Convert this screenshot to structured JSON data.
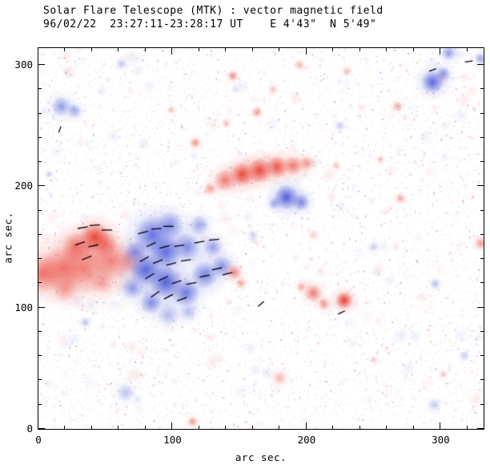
{
  "chart": {
    "title": "Solar Flare Telescope (MTK) : vector magnetic field",
    "subtitle": "96/02/22  23:27:11-23:28:17 UT    E 4'43\"  N 5'49\"",
    "xlabel": "arc sec.",
    "ylabel": "arc sec."
  },
  "chart_data": {
    "type": "heatmap",
    "description": "Vector magnetogram: red = positive line-of-sight polarity, blue = negative polarity, black segments = transverse field vectors",
    "xlim": [
      0,
      332
    ],
    "ylim": [
      0,
      314
    ],
    "xticks": [
      0,
      100,
      200,
      300
    ],
    "yticks": [
      0,
      100,
      200,
      300
    ],
    "minor_tick_step": 20,
    "colors": {
      "positive": "#e83c30",
      "negative": "#4656d8"
    },
    "noise": {
      "count": 14000,
      "max_alpha": 0.45,
      "smudges": 220,
      "seed": 7
    },
    "blobs": [
      {
        "x": 3,
        "y": 128,
        "r": 16,
        "i": 0.6,
        "p": "pos"
      },
      {
        "x": 18,
        "y": 132,
        "r": 18,
        "i": 0.55,
        "p": "pos"
      },
      {
        "x": 35,
        "y": 133,
        "r": 22,
        "i": 0.5,
        "p": "pos"
      },
      {
        "x": 55,
        "y": 138,
        "r": 16,
        "i": 0.5,
        "p": "pos"
      },
      {
        "x": 68,
        "y": 138,
        "r": 10,
        "i": 0.35,
        "p": "pos"
      },
      {
        "x": 42,
        "y": 158,
        "r": 12,
        "i": 0.9,
        "p": "pos"
      },
      {
        "x": 28,
        "y": 150,
        "r": 12,
        "i": 0.6,
        "p": "pos"
      },
      {
        "x": 50,
        "y": 152,
        "r": 10,
        "i": 0.55,
        "p": "pos"
      },
      {
        "x": 20,
        "y": 115,
        "r": 10,
        "i": 0.35,
        "p": "pos"
      },
      {
        "x": 48,
        "y": 120,
        "r": 9,
        "i": 0.3,
        "p": "pos"
      },
      {
        "x": 85,
        "y": 160,
        "r": 15,
        "i": 0.75,
        "p": "neg"
      },
      {
        "x": 98,
        "y": 168,
        "r": 11,
        "i": 0.55,
        "p": "neg"
      },
      {
        "x": 95,
        "y": 146,
        "r": 13,
        "i": 0.8,
        "p": "neg"
      },
      {
        "x": 111,
        "y": 150,
        "r": 11,
        "i": 0.6,
        "p": "neg"
      },
      {
        "x": 80,
        "y": 131,
        "r": 13,
        "i": 0.85,
        "p": "neg"
      },
      {
        "x": 95,
        "y": 121,
        "r": 13,
        "i": 0.9,
        "p": "neg"
      },
      {
        "x": 110,
        "y": 112,
        "r": 11,
        "i": 0.7,
        "p": "neg"
      },
      {
        "x": 124,
        "y": 127,
        "r": 11,
        "i": 0.65,
        "p": "neg"
      },
      {
        "x": 137,
        "y": 134,
        "r": 9,
        "i": 0.55,
        "p": "neg"
      },
      {
        "x": 70,
        "y": 116,
        "r": 9,
        "i": 0.5,
        "p": "neg"
      },
      {
        "x": 84,
        "y": 104,
        "r": 9,
        "i": 0.6,
        "p": "neg"
      },
      {
        "x": 120,
        "y": 168,
        "r": 8,
        "i": 0.45,
        "p": "neg"
      },
      {
        "x": 130,
        "y": 150,
        "r": 8,
        "i": 0.5,
        "p": "neg"
      },
      {
        "x": 72,
        "y": 146,
        "r": 9,
        "i": 0.55,
        "p": "neg"
      },
      {
        "x": 97,
        "y": 94,
        "r": 9,
        "i": 0.35,
        "p": "neg"
      },
      {
        "x": 112,
        "y": 96,
        "r": 7,
        "i": 0.3,
        "p": "neg"
      },
      {
        "x": 146,
        "y": 129,
        "r": 6,
        "i": 0.5,
        "p": "pos"
      },
      {
        "x": 151,
        "y": 120,
        "r": 4,
        "i": 0.4,
        "p": "pos"
      },
      {
        "x": 139,
        "y": 205,
        "r": 9,
        "i": 0.6,
        "p": "pos"
      },
      {
        "x": 152,
        "y": 210,
        "r": 10,
        "i": 0.85,
        "p": "pos"
      },
      {
        "x": 165,
        "y": 213,
        "r": 10,
        "i": 0.9,
        "p": "pos"
      },
      {
        "x": 178,
        "y": 216,
        "r": 9,
        "i": 0.8,
        "p": "pos"
      },
      {
        "x": 190,
        "y": 217,
        "r": 8,
        "i": 0.6,
        "p": "pos"
      },
      {
        "x": 200,
        "y": 219,
        "r": 6,
        "i": 0.45,
        "p": "pos"
      },
      {
        "x": 128,
        "y": 198,
        "r": 5,
        "i": 0.4,
        "p": "pos"
      },
      {
        "x": 185,
        "y": 191,
        "r": 10,
        "i": 0.9,
        "p": "neg"
      },
      {
        "x": 196,
        "y": 187,
        "r": 7,
        "i": 0.6,
        "p": "neg"
      },
      {
        "x": 176,
        "y": 186,
        "r": 5,
        "i": 0.4,
        "p": "neg"
      },
      {
        "x": 205,
        "y": 112,
        "r": 7,
        "i": 0.6,
        "p": "pos"
      },
      {
        "x": 213,
        "y": 103,
        "r": 5,
        "i": 0.45,
        "p": "pos"
      },
      {
        "x": 228,
        "y": 106,
        "r": 7,
        "i": 0.95,
        "p": "pos"
      },
      {
        "x": 196,
        "y": 117,
        "r": 4,
        "i": 0.35,
        "p": "pos"
      },
      {
        "x": 294,
        "y": 286,
        "r": 9,
        "i": 0.85,
        "p": "neg"
      },
      {
        "x": 302,
        "y": 293,
        "r": 6,
        "i": 0.5,
        "p": "neg"
      },
      {
        "x": 306,
        "y": 310,
        "r": 6,
        "i": 0.5,
        "p": "neg"
      },
      {
        "x": 330,
        "y": 305,
        "r": 5,
        "i": 0.4,
        "p": "neg"
      },
      {
        "x": 17,
        "y": 266,
        "r": 8,
        "i": 0.5,
        "p": "neg"
      },
      {
        "x": 27,
        "y": 262,
        "r": 6,
        "i": 0.4,
        "p": "neg"
      },
      {
        "x": 117,
        "y": 236,
        "r": 4,
        "i": 0.5,
        "p": "pos"
      },
      {
        "x": 145,
        "y": 291,
        "r": 4,
        "i": 0.5,
        "p": "pos"
      },
      {
        "x": 163,
        "y": 261,
        "r": 4,
        "i": 0.45,
        "p": "pos"
      },
      {
        "x": 99,
        "y": 263,
        "r": 3,
        "i": 0.3,
        "p": "pos"
      },
      {
        "x": 140,
        "y": 252,
        "r": 3,
        "i": 0.3,
        "p": "pos"
      },
      {
        "x": 270,
        "y": 190,
        "r": 4,
        "i": 0.4,
        "p": "pos"
      },
      {
        "x": 330,
        "y": 153,
        "r": 5,
        "i": 0.45,
        "p": "pos"
      },
      {
        "x": 255,
        "y": 222,
        "r": 3,
        "i": 0.3,
        "p": "pos"
      },
      {
        "x": 268,
        "y": 266,
        "r": 4,
        "i": 0.4,
        "p": "pos"
      },
      {
        "x": 222,
        "y": 217,
        "r": 3,
        "i": 0.3,
        "p": "pos"
      },
      {
        "x": 180,
        "y": 42,
        "r": 6,
        "i": 0.3,
        "p": "pos"
      },
      {
        "x": 115,
        "y": 6,
        "r": 4,
        "i": 0.45,
        "p": "pos"
      },
      {
        "x": 250,
        "y": 57,
        "r": 3,
        "i": 0.25,
        "p": "pos"
      },
      {
        "x": 302,
        "y": 45,
        "r": 3,
        "i": 0.25,
        "p": "pos"
      },
      {
        "x": 230,
        "y": 295,
        "r": 4,
        "i": 0.25,
        "p": "pos"
      },
      {
        "x": 195,
        "y": 300,
        "r": 4,
        "i": 0.3,
        "p": "pos"
      },
      {
        "x": 175,
        "y": 280,
        "r": 4,
        "i": 0.25,
        "p": "pos"
      },
      {
        "x": 205,
        "y": 160,
        "r": 4,
        "i": 0.2,
        "p": "pos"
      },
      {
        "x": 65,
        "y": 30,
        "r": 7,
        "i": 0.3,
        "p": "neg"
      },
      {
        "x": 35,
        "y": 88,
        "r": 4,
        "i": 0.3,
        "p": "neg"
      },
      {
        "x": 8,
        "y": 210,
        "r": 3,
        "i": 0.25,
        "p": "neg"
      },
      {
        "x": 62,
        "y": 301,
        "r": 4,
        "i": 0.3,
        "p": "neg"
      },
      {
        "x": 250,
        "y": 150,
        "r": 4,
        "i": 0.25,
        "p": "neg"
      },
      {
        "x": 296,
        "y": 120,
        "r": 4,
        "i": 0.25,
        "p": "neg"
      },
      {
        "x": 318,
        "y": 60,
        "r": 4,
        "i": 0.22,
        "p": "neg"
      },
      {
        "x": 225,
        "y": 250,
        "r": 4,
        "i": 0.25,
        "p": "neg"
      },
      {
        "x": 160,
        "y": 160,
        "r": 4,
        "i": 0.2,
        "p": "neg"
      },
      {
        "x": 295,
        "y": 20,
        "r": 5,
        "i": 0.25,
        "p": "neg"
      }
    ],
    "vectors": [
      {
        "x": 78,
        "y": 162,
        "a": 15
      },
      {
        "x": 88,
        "y": 165,
        "a": 5
      },
      {
        "x": 97,
        "y": 167,
        "a": 0
      },
      {
        "x": 84,
        "y": 152,
        "a": 25
      },
      {
        "x": 94,
        "y": 150,
        "a": 15
      },
      {
        "x": 105,
        "y": 151,
        "a": 8
      },
      {
        "x": 79,
        "y": 140,
        "a": 30
      },
      {
        "x": 89,
        "y": 138,
        "a": 22
      },
      {
        "x": 99,
        "y": 136,
        "a": 15
      },
      {
        "x": 110,
        "y": 139,
        "a": 8
      },
      {
        "x": 83,
        "y": 126,
        "a": 32
      },
      {
        "x": 93,
        "y": 124,
        "a": 25
      },
      {
        "x": 103,
        "y": 121,
        "a": 18
      },
      {
        "x": 114,
        "y": 120,
        "a": 10
      },
      {
        "x": 124,
        "y": 126,
        "a": 12
      },
      {
        "x": 87,
        "y": 111,
        "a": 35
      },
      {
        "x": 97,
        "y": 109,
        "a": 28
      },
      {
        "x": 107,
        "y": 107,
        "a": 20
      },
      {
        "x": 133,
        "y": 132,
        "a": 12
      },
      {
        "x": 120,
        "y": 154,
        "a": 10
      },
      {
        "x": 131,
        "y": 156,
        "a": 6
      },
      {
        "x": 141,
        "y": 128,
        "a": 14
      },
      {
        "x": 33,
        "y": 166,
        "a": 10
      },
      {
        "x": 42,
        "y": 168,
        "a": 4
      },
      {
        "x": 51,
        "y": 164,
        "a": 0
      },
      {
        "x": 31,
        "y": 153,
        "a": 18
      },
      {
        "x": 41,
        "y": 151,
        "a": 12
      },
      {
        "x": 36,
        "y": 141,
        "a": 22
      },
      {
        "x": 16,
        "y": 247,
        "a": 70,
        "len": 5
      },
      {
        "x": 166,
        "y": 103,
        "a": 40,
        "len": 6
      },
      {
        "x": 226,
        "y": 96,
        "a": 25,
        "len": 6
      },
      {
        "x": 294,
        "y": 296,
        "a": 20,
        "len": 6
      },
      {
        "x": 321,
        "y": 303,
        "a": 10,
        "len": 6
      }
    ]
  }
}
